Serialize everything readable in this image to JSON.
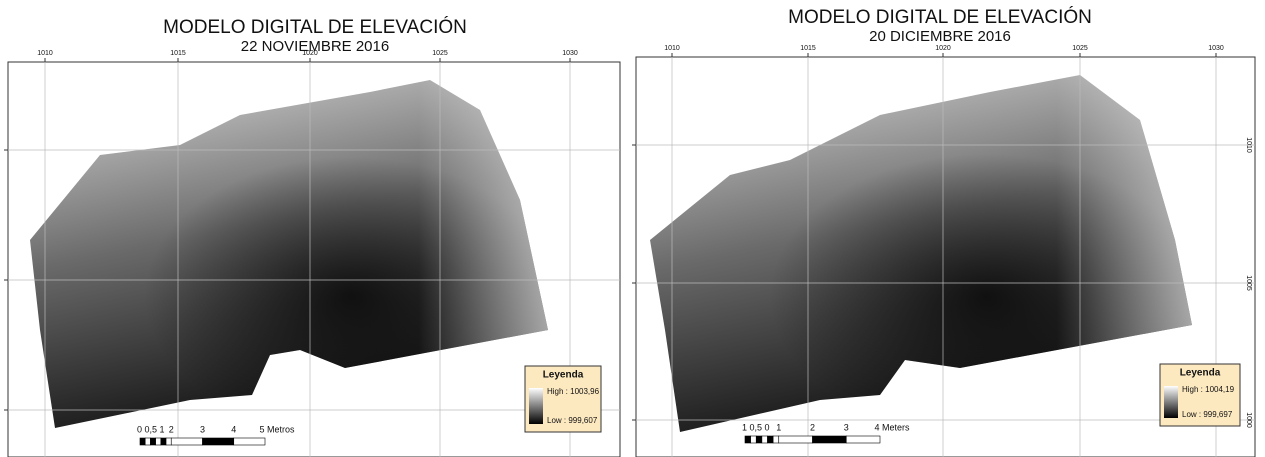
{
  "panels": [
    {
      "title": "MODELO DIGITAL DE ELEVACIÓN",
      "subtitle": "22 NOVIEMBRE 2016",
      "top_ticks": [
        "1010",
        "1015",
        "1020",
        "1025",
        "1030"
      ],
      "legend": {
        "title": "Leyenda",
        "high": "High : 1003,96",
        "low": "Low : 999,607"
      },
      "scale": [
        "0 0,5 1",
        "2",
        "3",
        "4",
        "5 Metros"
      ]
    },
    {
      "title": "MODELO DIGITAL DE ELEVACIÓN",
      "subtitle": "20 DICIEMBRE 2016",
      "top_ticks": [
        "1010",
        "1015",
        "1020",
        "1025",
        "1030"
      ],
      "side_ticks": [
        "1010",
        "1005",
        "1000"
      ],
      "legend": {
        "title": "Leyenda",
        "high": "High : 1004,19",
        "low": "Low : 999,697"
      },
      "scale": [
        "1 0,5 0",
        "1",
        "2",
        "3",
        "4 Meters"
      ]
    }
  ]
}
